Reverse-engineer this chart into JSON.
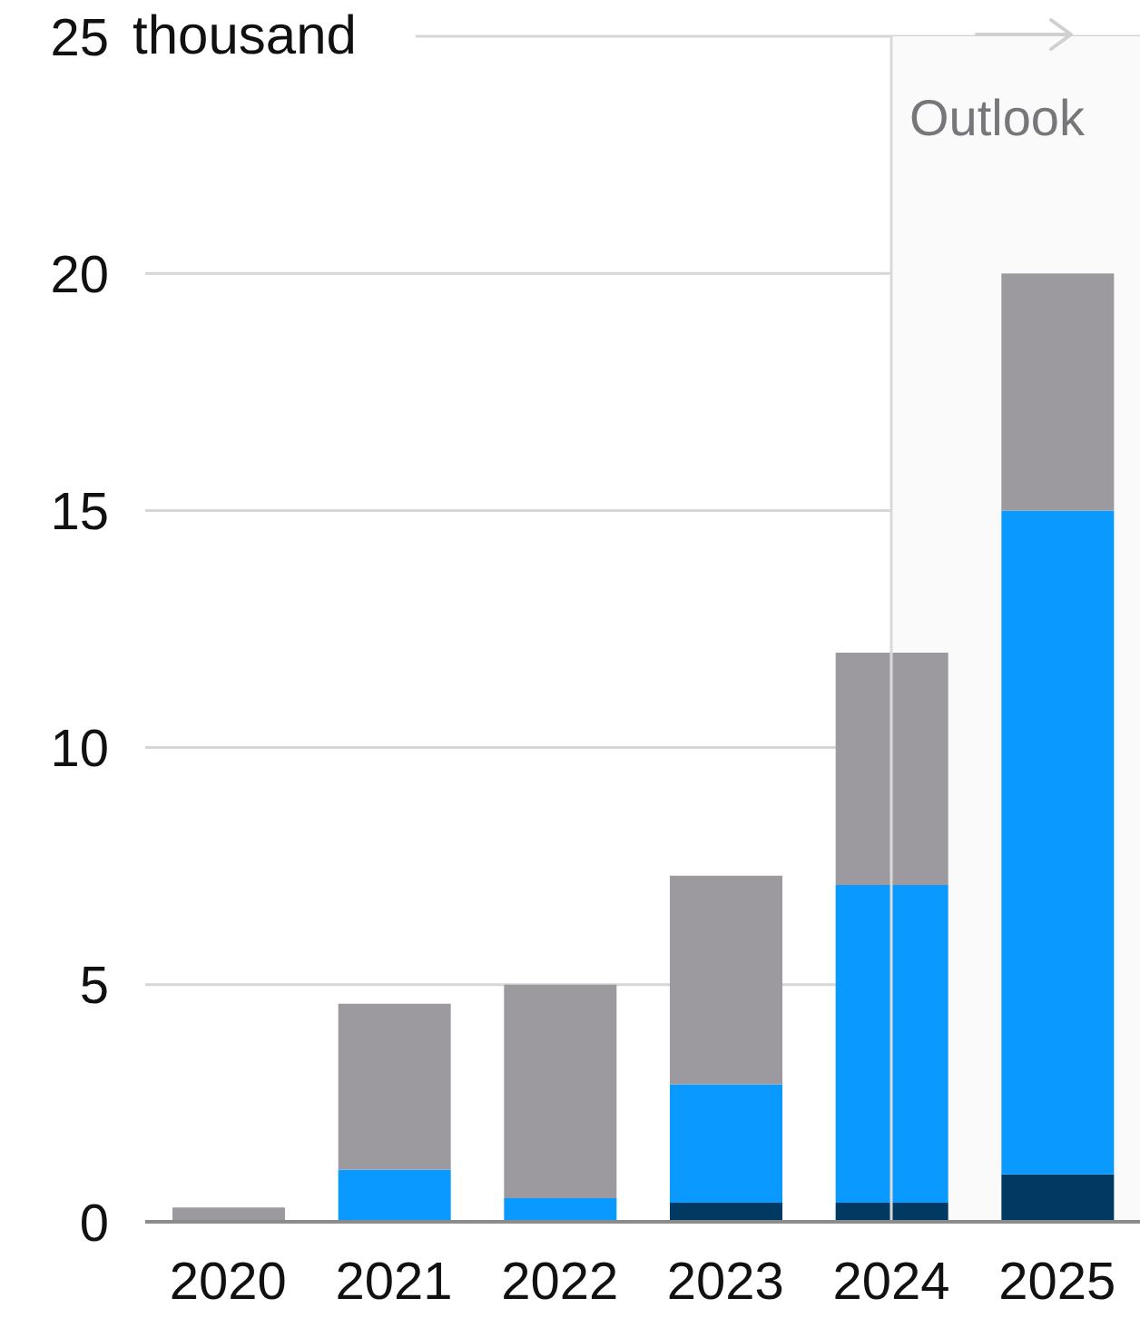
{
  "chart_data": {
    "type": "bar",
    "stacked": true,
    "categories": [
      "2020",
      "2021",
      "2022",
      "2023",
      "2024",
      "2025"
    ],
    "series": [
      {
        "color": "#003a63",
        "values": [
          null,
          null,
          null,
          0.4,
          0.4,
          1
        ]
      },
      {
        "color": "#0a99ff",
        "values": [
          null,
          1.1,
          0.5,
          2.5,
          6.7,
          14
        ]
      },
      {
        "color": "#9c9a9f",
        "values": [
          0.3,
          3.5,
          4.5,
          4.4,
          4.9,
          5
        ]
      }
    ],
    "ylabel": "thousand",
    "ylim": [
      0,
      25
    ],
    "yticks": [
      0,
      5,
      10,
      15,
      20,
      25
    ],
    "grid": "y",
    "bands": [
      {
        "axis": "x",
        "from": "2024",
        "to": "2025",
        "label": "Outlook",
        "color": "#fafafa"
      }
    ],
    "ref_lines": [
      {
        "axis": "x",
        "value": "2024",
        "color": "#d9d9d9"
      }
    ]
  }
}
